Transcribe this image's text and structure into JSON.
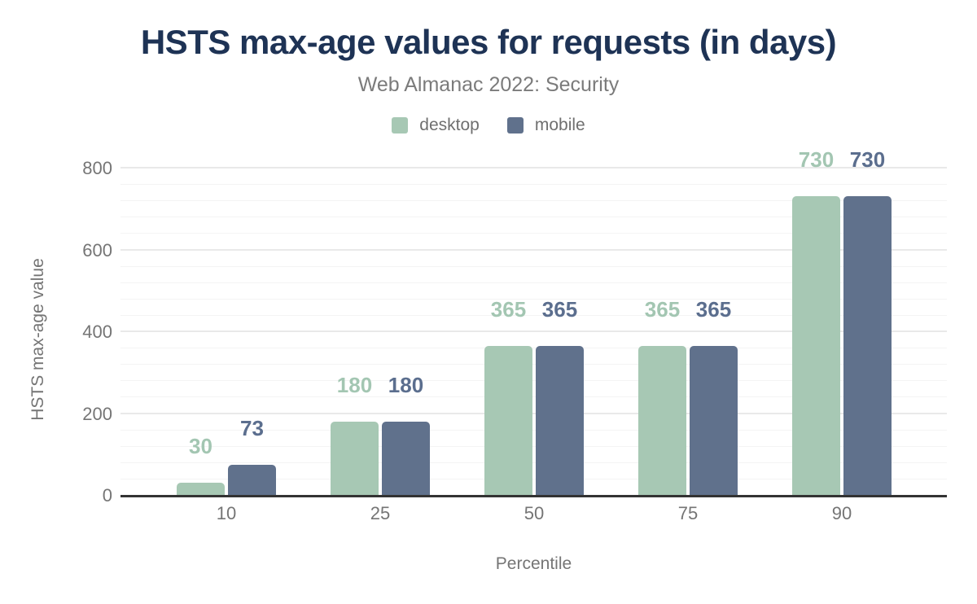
{
  "header": {
    "title": "HSTS max-age values for requests (in days)",
    "subtitle": "Web Almanac 2022: Security"
  },
  "colors": {
    "title": "#1e3355",
    "subtitle_gray": "#7b7b7b",
    "axis_gray": "#757575",
    "axis_line": "#333333",
    "gridline_major": "#e9e9e9",
    "gridline_minor": "#f4f4f4",
    "desktop": "#a7c8b4",
    "mobile": "#60718c"
  },
  "chart_data": {
    "type": "bar",
    "categories": [
      "10",
      "25",
      "50",
      "75",
      "90"
    ],
    "series": [
      {
        "name": "desktop",
        "color": "#a7c8b4",
        "label_color": "#a3c6b2",
        "values": [
          30,
          180,
          365,
          365,
          730
        ]
      },
      {
        "name": "mobile",
        "color": "#60718c",
        "label_color": "#5b6e8e",
        "values": [
          73,
          180,
          365,
          365,
          730
        ]
      }
    ],
    "title": "HSTS max-age values for requests (in days)",
    "subtitle": "Web Almanac 2022: Security",
    "xlabel": "Percentile",
    "ylabel": "HSTS max-age value",
    "ylim": [
      0,
      800
    ],
    "yticks": [
      0,
      200,
      400,
      600,
      800
    ],
    "grid": {
      "major_interval": 200,
      "minor_interval": 40,
      "grid_on": true
    },
    "legend_position": "top",
    "bar_value_labels_shown": true
  }
}
